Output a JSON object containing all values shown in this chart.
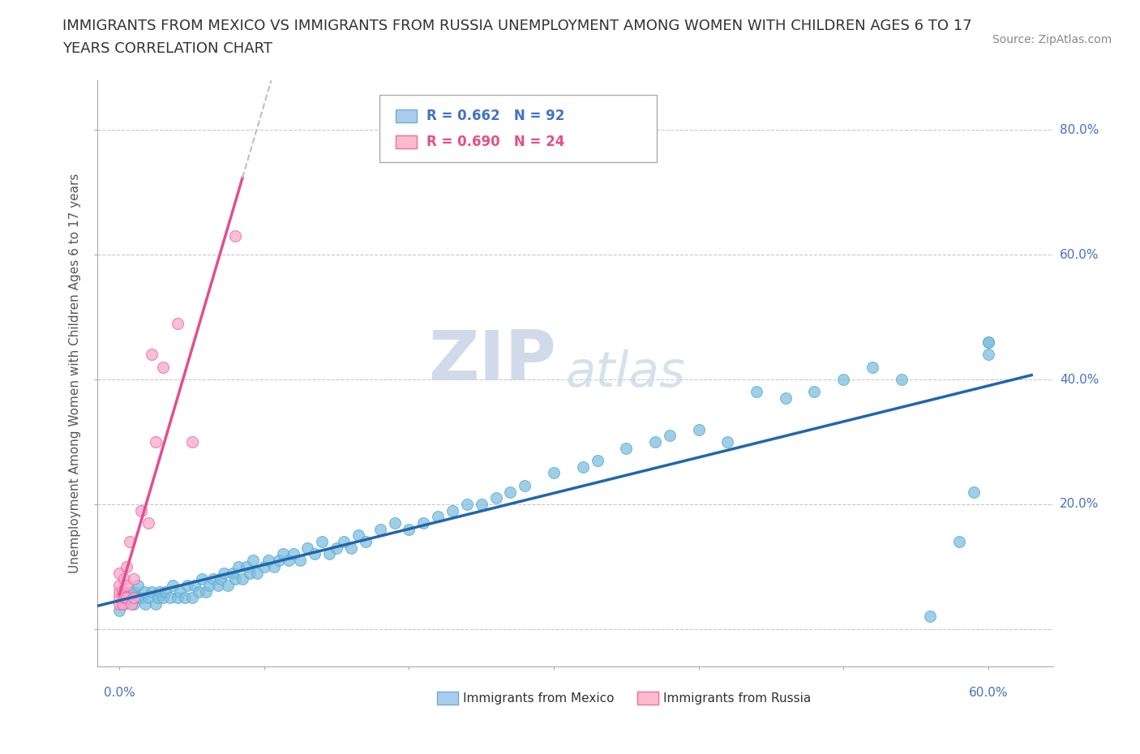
{
  "title_line1": "IMMIGRANTS FROM MEXICO VS IMMIGRANTS FROM RUSSIA UNEMPLOYMENT AMONG WOMEN WITH CHILDREN AGES 6 TO 17",
  "title_line2": "YEARS CORRELATION CHART",
  "source": "Source: ZipAtlas.com",
  "ylabel": "Unemployment Among Women with Children Ages 6 to 17 years",
  "legend_r1": "R = 0.662   N = 92",
  "legend_r2": "R = 0.690   N = 24",
  "mexico_color": "#7fbfdf",
  "mexico_edge_color": "#5aaad0",
  "russia_color": "#f9a8c9",
  "russia_edge_color": "#f060a0",
  "mexico_line_color": "#2166ac",
  "russia_line_color": "#e05090",
  "russia_line_dashed_color": "#d0a0b0",
  "watermark_ZIP": "ZIP",
  "watermark_atlas": "atlas",
  "watermark_color": "#d0d8e8",
  "background_color": "#ffffff",
  "xlim": [
    -0.015,
    0.645
  ],
  "ylim": [
    -0.06,
    0.88
  ],
  "mexico_x": [
    0.0,
    0.003,
    0.005,
    0.007,
    0.008,
    0.01,
    0.01,
    0.012,
    0.013,
    0.015,
    0.017,
    0.018,
    0.02,
    0.022,
    0.025,
    0.027,
    0.028,
    0.03,
    0.032,
    0.035,
    0.037,
    0.04,
    0.042,
    0.045,
    0.047,
    0.05,
    0.052,
    0.055,
    0.057,
    0.06,
    0.062,
    0.065,
    0.068,
    0.07,
    0.072,
    0.075,
    0.078,
    0.08,
    0.082,
    0.085,
    0.088,
    0.09,
    0.092,
    0.095,
    0.1,
    0.103,
    0.107,
    0.11,
    0.113,
    0.117,
    0.12,
    0.125,
    0.13,
    0.135,
    0.14,
    0.145,
    0.15,
    0.155,
    0.16,
    0.165,
    0.17,
    0.18,
    0.19,
    0.2,
    0.21,
    0.22,
    0.23,
    0.24,
    0.25,
    0.26,
    0.27,
    0.28,
    0.3,
    0.32,
    0.33,
    0.35,
    0.37,
    0.38,
    0.4,
    0.42,
    0.44,
    0.46,
    0.48,
    0.5,
    0.52,
    0.54,
    0.56,
    0.58,
    0.59,
    0.6,
    0.6,
    0.6
  ],
  "mexico_y": [
    0.03,
    0.04,
    0.05,
    0.06,
    0.05,
    0.04,
    0.06,
    0.05,
    0.07,
    0.05,
    0.06,
    0.04,
    0.05,
    0.06,
    0.04,
    0.05,
    0.06,
    0.05,
    0.06,
    0.05,
    0.07,
    0.05,
    0.06,
    0.05,
    0.07,
    0.05,
    0.07,
    0.06,
    0.08,
    0.06,
    0.07,
    0.08,
    0.07,
    0.08,
    0.09,
    0.07,
    0.09,
    0.08,
    0.1,
    0.08,
    0.1,
    0.09,
    0.11,
    0.09,
    0.1,
    0.11,
    0.1,
    0.11,
    0.12,
    0.11,
    0.12,
    0.11,
    0.13,
    0.12,
    0.14,
    0.12,
    0.13,
    0.14,
    0.13,
    0.15,
    0.14,
    0.16,
    0.17,
    0.16,
    0.17,
    0.18,
    0.19,
    0.2,
    0.2,
    0.21,
    0.22,
    0.23,
    0.25,
    0.26,
    0.27,
    0.29,
    0.3,
    0.31,
    0.32,
    0.3,
    0.38,
    0.37,
    0.38,
    0.4,
    0.42,
    0.4,
    0.02,
    0.14,
    0.22,
    0.44,
    0.46,
    0.46
  ],
  "russia_x": [
    0.0,
    0.0,
    0.0,
    0.0,
    0.0,
    0.002,
    0.002,
    0.003,
    0.003,
    0.005,
    0.005,
    0.005,
    0.007,
    0.008,
    0.01,
    0.01,
    0.015,
    0.02,
    0.022,
    0.025,
    0.03,
    0.04,
    0.05,
    0.08
  ],
  "russia_y": [
    0.04,
    0.05,
    0.06,
    0.07,
    0.09,
    0.04,
    0.06,
    0.05,
    0.08,
    0.05,
    0.07,
    0.1,
    0.14,
    0.04,
    0.05,
    0.08,
    0.19,
    0.17,
    0.44,
    0.3,
    0.42,
    0.49,
    0.3,
    0.63
  ]
}
